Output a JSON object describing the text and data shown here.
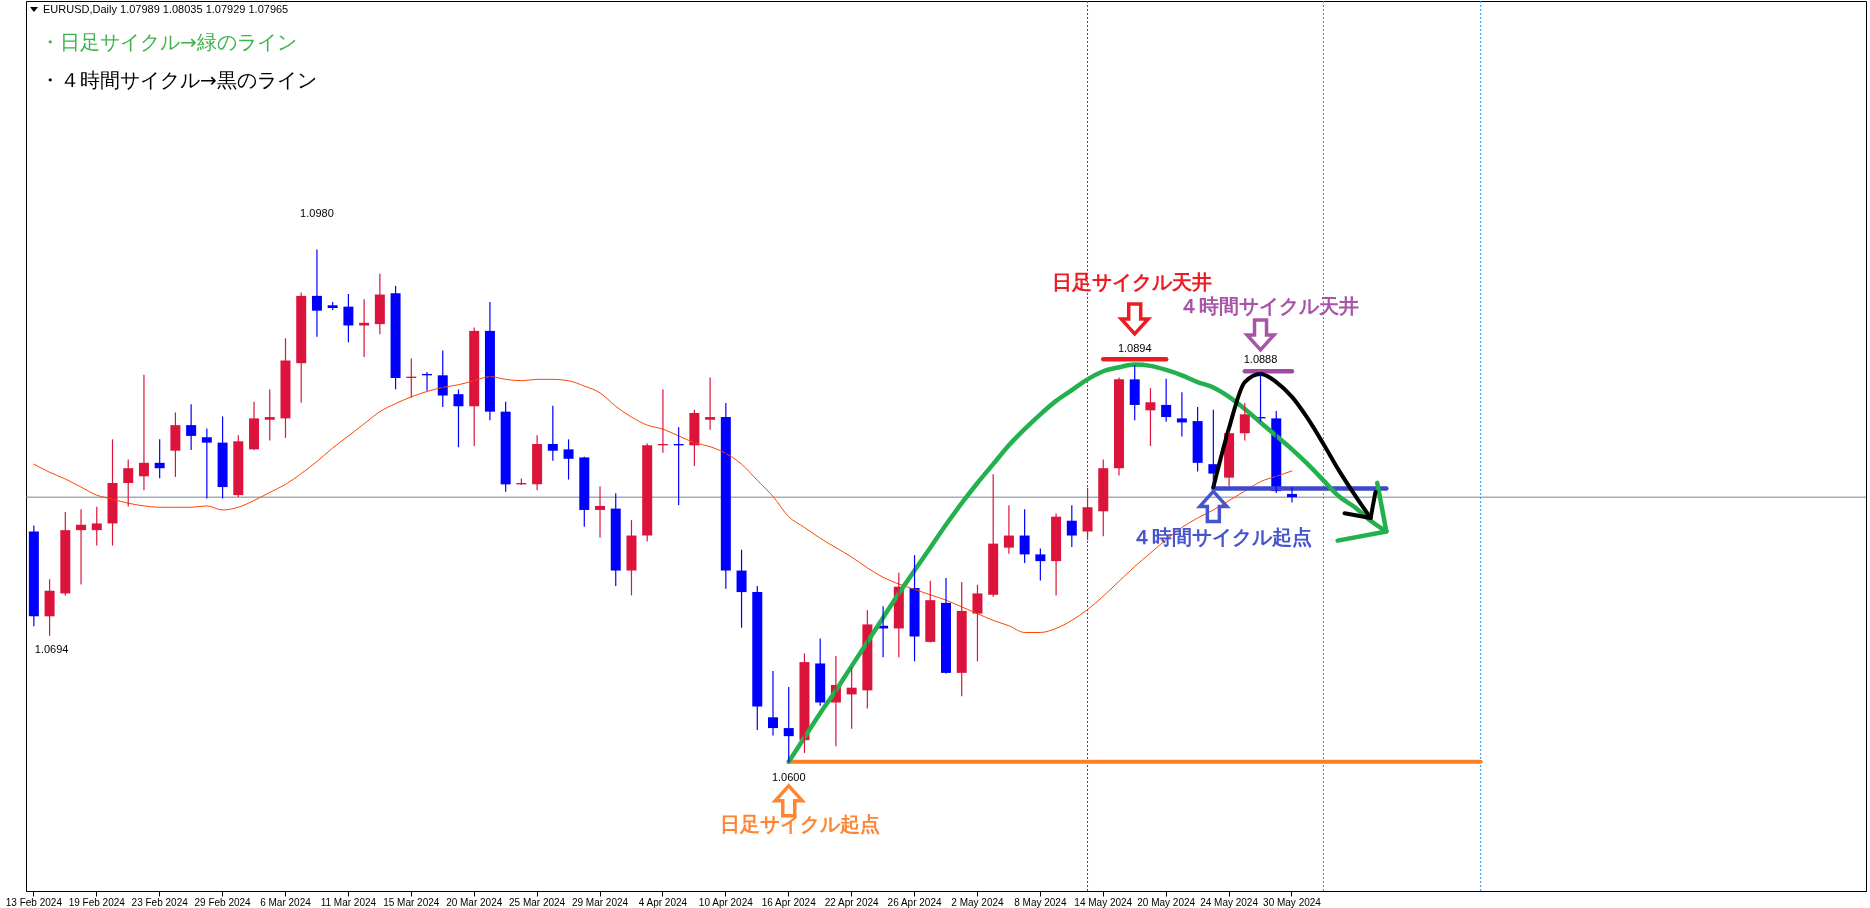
{
  "chart_data": {
    "type": "candlestick",
    "title": "EURUSD,Daily 1.07989 1.08035 1.07929 1.07965",
    "ylim": [
      1.0504,
      1.1165
    ],
    "tick_labels": "x",
    "categories": [
      "13 Feb 2024",
      null,
      null,
      null,
      "19 Feb 2024",
      null,
      null,
      null,
      "23 Feb 2024",
      null,
      null,
      null,
      "29 Feb 2024",
      null,
      null,
      null,
      "6 Mar 2024",
      null,
      null,
      null,
      "11 Mar 2024",
      null,
      null,
      null,
      "15 Mar 2024",
      null,
      null,
      null,
      "20 Mar 2024",
      null,
      null,
      null,
      "25 Mar 2024",
      null,
      null,
      null,
      "29 Mar 2024",
      null,
      null,
      null,
      "4 Apr 2024",
      null,
      null,
      null,
      "10 Apr 2024",
      null,
      null,
      null,
      "16 Apr 2024",
      null,
      null,
      null,
      "22 Apr 2024",
      null,
      null,
      null,
      "26 Apr 2024",
      null,
      null,
      null,
      "2 May 2024",
      null,
      null,
      null,
      "8 May 2024",
      null,
      null,
      null,
      "14 May 2024",
      null,
      null,
      null,
      "20 May 2024",
      null,
      null,
      null,
      "24 May 2024",
      null,
      null,
      null,
      "30 May 2024",
      null,
      null,
      null,
      null,
      null,
      null,
      null,
      null,
      null,
      null,
      null,
      null,
      null,
      null,
      null,
      null,
      null,
      null,
      null,
      null,
      null,
      null,
      null,
      null,
      null,
      null,
      null,
      null,
      null,
      null,
      null,
      null,
      null,
      null,
      null,
      null
    ],
    "series": [
      {
        "ohlc": [
          [
            1.0771,
            1.0775,
            1.0701,
            1.0708
          ],
          [
            1.0708,
            1.0735,
            1.0694,
            1.0727
          ],
          [
            1.0725,
            1.0785,
            1.0724,
            1.0772
          ],
          [
            1.0772,
            1.0787,
            1.0732,
            1.0776
          ],
          [
            1.0772,
            1.0789,
            1.0761,
            1.0777
          ],
          [
            1.0777,
            1.0839,
            1.0761,
            1.0807
          ],
          [
            1.0807,
            1.0824,
            1.079,
            1.0818
          ],
          [
            1.0812,
            1.0887,
            1.0802,
            1.0822
          ],
          [
            1.0822,
            1.0839,
            1.0811,
            1.0818
          ],
          [
            1.0831,
            1.0859,
            1.0812,
            1.085
          ],
          [
            1.085,
            1.0865,
            1.0832,
            1.0842
          ],
          [
            1.0841,
            1.0847,
            1.0796,
            1.0837
          ],
          [
            1.0837,
            1.0856,
            1.0796,
            1.0804
          ],
          [
            1.0798,
            1.0842,
            1.0797,
            1.0838
          ],
          [
            1.0832,
            1.0867,
            1.0832,
            1.0855
          ],
          [
            1.0854,
            1.0876,
            1.0839,
            1.0856
          ],
          [
            1.0855,
            1.0914,
            1.0841,
            1.0898
          ],
          [
            1.0896,
            1.0948,
            1.0867,
            1.0946
          ],
          [
            1.0946,
            1.098,
            1.0916,
            1.0935
          ],
          [
            1.0939,
            1.0941,
            1.0936,
            1.0937
          ],
          [
            1.0938,
            1.0947,
            1.0912,
            1.0924
          ],
          [
            1.0924,
            1.0943,
            1.0901,
            1.0926
          ],
          [
            1.0925,
            1.0962,
            1.0918,
            1.0947
          ],
          [
            1.0948,
            1.0953,
            1.0877,
            1.0885
          ],
          [
            1.0885,
            1.0899,
            1.0871,
            1.0886
          ],
          [
            1.0888,
            1.0889,
            1.0876,
            1.0887
          ],
          [
            1.0887,
            1.0905,
            1.0864,
            1.0872
          ],
          [
            1.0873,
            1.0876,
            1.0834,
            1.0864
          ],
          [
            1.0864,
            1.0922,
            1.0835,
            1.092
          ],
          [
            1.092,
            1.0941,
            1.0854,
            1.086
          ],
          [
            1.086,
            1.0867,
            1.0801,
            1.0806
          ],
          [
            1.0806,
            1.081,
            1.0806,
            1.0807
          ],
          [
            1.0806,
            1.0842,
            1.0802,
            1.0836
          ],
          [
            1.0836,
            1.0864,
            1.0824,
            1.0831
          ],
          [
            1.0832,
            1.0839,
            1.081,
            1.0825
          ],
          [
            1.0826,
            1.0826,
            1.0775,
            1.0787
          ],
          [
            1.0787,
            1.0804,
            1.0767,
            1.079
          ],
          [
            1.0788,
            1.0799,
            1.0731,
            1.0742
          ],
          [
            1.0742,
            1.0779,
            1.0724,
            1.0768
          ],
          [
            1.0768,
            1.0836,
            1.0764,
            1.0835
          ],
          [
            1.0835,
            1.0876,
            1.083,
            1.0836
          ],
          [
            1.0836,
            1.0848,
            1.0791,
            1.0835
          ],
          [
            1.0835,
            1.0861,
            1.082,
            1.0859
          ],
          [
            1.0854,
            1.0885,
            1.0847,
            1.0856
          ],
          [
            1.0856,
            1.0866,
            1.0729,
            1.0742
          ],
          [
            1.0742,
            1.0757,
            1.07,
            1.0726
          ],
          [
            1.0726,
            1.073,
            1.0624,
            1.0641
          ],
          [
            1.0633,
            1.0667,
            1.062,
            1.0625
          ],
          [
            1.0625,
            1.0655,
            1.06,
            1.0619
          ],
          [
            1.0616,
            1.068,
            1.0607,
            1.0674
          ],
          [
            1.0673,
            1.0691,
            1.0642,
            1.0644
          ],
          [
            1.0644,
            1.0678,
            1.0612,
            1.0657
          ],
          [
            1.065,
            1.067,
            1.0625,
            1.0655
          ],
          [
            1.0653,
            1.0712,
            1.064,
            1.0702
          ],
          [
            1.0701,
            1.0715,
            1.0678,
            1.0699
          ],
          [
            1.0699,
            1.074,
            1.0678,
            1.073
          ],
          [
            1.0729,
            1.0753,
            1.0675,
            1.0693
          ],
          [
            1.0689,
            1.0734,
            1.0689,
            1.072
          ],
          [
            1.0718,
            1.0736,
            1.0666,
            1.0666
          ],
          [
            1.0666,
            1.0733,
            1.0649,
            1.0712
          ],
          [
            1.071,
            1.0731,
            1.0675,
            1.0725
          ],
          [
            1.0724,
            1.0813,
            1.0723,
            1.0762
          ],
          [
            1.0759,
            1.079,
            1.0755,
            1.0768
          ],
          [
            1.0768,
            1.0787,
            1.0748,
            1.0754
          ],
          [
            1.0754,
            1.0758,
            1.0735,
            1.0749
          ],
          [
            1.0749,
            1.0784,
            1.0724,
            1.0782
          ],
          [
            1.0779,
            1.079,
            1.076,
            1.0768
          ],
          [
            1.0771,
            1.0803,
            1.0765,
            1.0789
          ],
          [
            1.0786,
            1.0824,
            1.0768,
            1.0818
          ],
          [
            1.0818,
            1.0885,
            1.0813,
            1.0884
          ],
          [
            1.0884,
            1.0894,
            1.0854,
            1.0865
          ],
          [
            1.0861,
            1.0877,
            1.0835,
            1.0867
          ],
          [
            1.0865,
            1.0884,
            1.0853,
            1.0856
          ],
          [
            1.0855,
            1.0874,
            1.0842,
            1.0852
          ],
          [
            1.0853,
            1.0863,
            1.0816,
            1.0822
          ],
          [
            1.0821,
            1.0861,
            1.0804,
            1.0814
          ],
          [
            1.0811,
            1.0845,
            1.0805,
            1.0844
          ],
          [
            1.0844,
            1.0866,
            1.0839,
            1.0858
          ],
          [
            1.0856,
            1.0888,
            1.0853,
            1.0855
          ],
          [
            1.0855,
            1.086,
            1.08,
            1.0801
          ],
          [
            1.07989,
            1.08035,
            1.07929,
            1.07965
          ],
          null,
          null,
          null,
          null,
          null,
          null,
          null,
          null,
          null,
          null,
          null,
          null,
          null,
          null,
          null,
          null,
          null,
          null,
          null,
          null,
          null,
          null,
          null,
          null,
          null,
          null,
          null,
          null,
          null,
          null,
          null,
          null,
          null,
          null,
          null,
          null
        ],
        "colors": [
          "#0000ff",
          "#dc143c",
          "#dc143c",
          "#dc143c",
          "#dc143c",
          "#dc143c",
          "#dc143c",
          "#dc143c",
          "#0000ff",
          "#dc143c",
          "#0000ff",
          "#0000ff",
          "#0000ff",
          "#dc143c",
          "#dc143c",
          "#dc143c",
          "#dc143c",
          "#dc143c",
          "#0000ff",
          "#0000ff",
          "#0000ff",
          "#dc143c",
          "#dc143c",
          "#0000ff",
          "#dc143c",
          "#0000ff",
          "#0000ff",
          "#0000ff",
          "#dc143c",
          "#0000ff",
          "#0000ff",
          "#dc143c",
          "#dc143c",
          "#0000ff",
          "#0000ff",
          "#0000ff",
          "#dc143c",
          "#0000ff",
          "#dc143c",
          "#dc143c",
          "#dc143c",
          "#0000ff",
          "#dc143c",
          "#dc143c",
          "#0000ff",
          "#0000ff",
          "#0000ff",
          "#0000ff",
          "#0000ff",
          "#dc143c",
          "#0000ff",
          "#dc143c",
          "#dc143c",
          "#dc143c",
          "#0000ff",
          "#dc143c",
          "#0000ff",
          "#dc143c",
          "#0000ff",
          "#dc143c",
          "#dc143c",
          "#dc143c",
          "#dc143c",
          "#0000ff",
          "#0000ff",
          "#dc143c",
          "#0000ff",
          "#dc143c",
          "#dc143c",
          "#dc143c",
          "#0000ff",
          "#dc143c",
          "#0000ff",
          "#0000ff",
          "#0000ff",
          "#0000ff",
          "#dc143c",
          "#dc143c",
          "#0000ff",
          "#0000ff",
          "#0000ff",
          null,
          null,
          null,
          null,
          null,
          null,
          null,
          null,
          null,
          null,
          null,
          null,
          null,
          null,
          null,
          null,
          null,
          null,
          null,
          null,
          null,
          null,
          null,
          null,
          null,
          null,
          null,
          null,
          null,
          null,
          null,
          null,
          null,
          null,
          null,
          null
        ]
      },
      {
        "type": "line",
        "color": "#ff4500",
        "values": [
          1.0821,
          1.0815,
          1.081,
          1.0804,
          1.0798,
          1.0795,
          1.0792,
          1.079,
          1.0789,
          1.0789,
          1.0789,
          1.079,
          1.0787,
          1.0789,
          1.0794,
          1.08,
          1.0806,
          1.0814,
          1.0823,
          1.0833,
          1.0842,
          1.0851,
          1.086,
          1.0866,
          1.0871,
          1.0875,
          1.0878,
          1.088,
          1.0883,
          1.0886,
          1.0884,
          1.0883,
          1.0884,
          1.0884,
          1.0883,
          1.0879,
          1.0874,
          1.0864,
          1.0856,
          1.085,
          1.0847,
          1.0842,
          1.0837,
          1.0834,
          1.0829,
          1.0821,
          1.0809,
          1.0797,
          1.0782,
          1.0774,
          1.0766,
          1.0759,
          1.0752,
          1.0744,
          1.0737,
          1.0732,
          1.0728,
          1.0724,
          1.072,
          1.0715,
          1.071,
          1.0705,
          1.0701,
          1.0696,
          1.0696,
          1.0699,
          1.0705,
          1.0713,
          1.0723,
          1.0734,
          1.0745,
          1.0755,
          1.0765,
          1.0774,
          1.0781,
          1.0787,
          1.0794,
          1.0801,
          1.0808,
          1.0812,
          1.0816,
          null,
          null,
          null,
          null,
          null,
          null,
          null,
          null,
          null,
          null,
          null,
          null,
          null,
          null,
          null,
          null,
          null,
          null,
          null,
          null,
          null,
          null,
          null,
          null,
          null,
          null,
          null,
          null,
          null,
          null,
          null,
          null,
          null,
          null,
          null,
          null
        ]
      },
      {
        "type": "line",
        "color": "#ff7f27",
        "values": [
          null,
          null,
          null,
          null,
          null,
          null,
          null,
          null,
          null,
          null,
          null,
          null,
          null,
          null,
          null,
          null,
          null,
          null,
          null,
          null,
          null,
          null,
          null,
          null,
          null,
          null,
          null,
          null,
          null,
          null,
          null,
          null,
          null,
          null,
          null,
          null,
          null,
          null,
          null,
          null,
          null,
          null,
          null,
          null,
          null,
          null,
          null,
          null,
          1.06,
          1.06,
          1.06,
          1.06,
          1.06,
          1.06,
          1.06,
          1.06,
          1.06,
          1.06,
          1.06,
          1.06,
          1.06,
          1.06,
          1.06,
          1.06,
          1.06,
          1.06,
          1.06,
          1.06,
          1.06,
          1.06,
          1.06,
          1.06,
          1.06,
          1.06,
          1.06,
          1.06,
          1.06,
          1.06,
          1.06,
          1.06,
          1.06,
          1.06,
          1.06,
          1.06,
          1.06,
          1.06,
          1.06,
          1.06,
          1.06,
          1.06,
          1.06,
          1.06,
          1.06,
          null,
          null,
          null,
          null,
          null,
          null,
          null,
          null,
          null,
          null,
          null,
          null,
          null,
          null,
          null,
          null,
          null,
          null,
          null,
          null,
          null,
          null,
          null,
          null
        ]
      },
      {
        "type": "line",
        "color": "#ed1c24",
        "values": [
          null,
          null,
          null,
          null,
          null,
          null,
          null,
          null,
          null,
          null,
          null,
          null,
          null,
          null,
          null,
          null,
          null,
          null,
          null,
          null,
          null,
          null,
          null,
          null,
          null,
          null,
          null,
          null,
          null,
          null,
          null,
          null,
          null,
          null,
          null,
          null,
          null,
          null,
          null,
          null,
          null,
          null,
          null,
          null,
          null,
          null,
          null,
          null,
          null,
          null,
          null,
          null,
          null,
          null,
          null,
          null,
          null,
          null,
          null,
          null,
          null,
          null,
          null,
          null,
          null,
          null,
          null,
          null,
          1.0899,
          1.0899,
          1.0899,
          1.0899,
          1.0899,
          null,
          null,
          null,
          null,
          null,
          null,
          null,
          null,
          null,
          null,
          null,
          null,
          null,
          null,
          null,
          null,
          null,
          null,
          null,
          null,
          null,
          null,
          null,
          null,
          null,
          null,
          null,
          null,
          null,
          null,
          null,
          null,
          null,
          null,
          null,
          null,
          null,
          null,
          null,
          null,
          null,
          null,
          null,
          null
        ]
      },
      {
        "type": "line",
        "color": "#a349a4",
        "values": [
          null,
          null,
          null,
          null,
          null,
          null,
          null,
          null,
          null,
          null,
          null,
          null,
          null,
          null,
          null,
          null,
          null,
          null,
          null,
          null,
          null,
          null,
          null,
          null,
          null,
          null,
          null,
          null,
          null,
          null,
          null,
          null,
          null,
          null,
          null,
          null,
          null,
          null,
          null,
          null,
          null,
          null,
          null,
          null,
          null,
          null,
          null,
          null,
          null,
          null,
          null,
          null,
          null,
          null,
          null,
          null,
          null,
          null,
          null,
          null,
          null,
          null,
          null,
          null,
          null,
          null,
          null,
          null,
          null,
          null,
          null,
          null,
          null,
          null,
          null,
          null,
          null,
          1.089,
          1.089,
          1.089,
          1.089,
          null,
          null,
          null,
          null,
          null,
          null,
          null,
          null,
          null,
          null,
          null,
          null,
          null,
          null,
          null,
          null,
          null,
          null,
          null,
          null,
          null,
          null,
          null,
          null,
          null,
          null,
          null,
          null,
          null,
          null,
          null,
          null,
          null,
          null,
          null,
          null
        ]
      },
      {
        "type": "line",
        "color": "#3f48cc",
        "values": [
          null,
          null,
          null,
          null,
          null,
          null,
          null,
          null,
          null,
          null,
          null,
          null,
          null,
          null,
          null,
          null,
          null,
          null,
          null,
          null,
          null,
          null,
          null,
          null,
          null,
          null,
          null,
          null,
          null,
          null,
          null,
          null,
          null,
          null,
          null,
          null,
          null,
          null,
          null,
          null,
          null,
          null,
          null,
          null,
          null,
          null,
          null,
          null,
          null,
          null,
          null,
          null,
          null,
          null,
          null,
          null,
          null,
          null,
          null,
          null,
          null,
          null,
          null,
          null,
          null,
          null,
          null,
          null,
          null,
          null,
          null,
          null,
          null,
          null,
          null,
          1.0803,
          1.0803,
          1.0803,
          1.0803,
          1.0803,
          1.0803,
          1.0803,
          1.0803,
          1.0803,
          1.0803,
          1.0803,
          1.0803,
          null,
          null,
          null,
          null,
          null,
          null,
          null,
          null,
          null,
          null,
          null,
          null,
          null,
          null,
          null,
          null,
          null,
          null,
          null,
          null,
          null,
          null,
          null,
          null,
          null,
          null,
          null,
          null,
          null,
          null
        ]
      },
      {
        "type": "line",
        "color": "#22b14c",
        "values": [
          null,
          null,
          null,
          null,
          null,
          null,
          null,
          null,
          null,
          null,
          null,
          null,
          null,
          null,
          null,
          null,
          null,
          null,
          null,
          null,
          null,
          null,
          null,
          null,
          null,
          null,
          null,
          null,
          null,
          null,
          null,
          null,
          null,
          null,
          null,
          null,
          null,
          null,
          null,
          null,
          null,
          null,
          null,
          null,
          null,
          null,
          null,
          null,
          1.06,
          1.0618,
          1.0636,
          1.0653,
          1.0671,
          1.0689,
          1.0707,
          1.0725,
          1.0742,
          1.0759,
          1.0776,
          1.0792,
          1.0807,
          1.0821,
          1.0835,
          1.0847,
          1.0858,
          1.0868,
          1.0876,
          1.0884,
          1.089,
          1.0893,
          1.0895,
          1.0894,
          1.0891,
          1.0887,
          1.0882,
          1.0878,
          1.0871,
          1.0862,
          1.0852,
          1.0842,
          1.0832,
          1.0821,
          1.0809,
          1.0797,
          1.0789,
          1.0779,
          1.0771,
          null,
          null,
          null,
          null,
          null,
          null,
          null,
          null,
          null,
          null,
          null,
          null,
          null,
          null,
          null,
          null,
          null,
          null,
          null,
          null,
          null,
          null,
          null,
          null,
          null,
          null,
          null,
          null,
          null,
          null
        ]
      },
      {
        "type": "line",
        "color": "#000000",
        "values": [
          null,
          null,
          null,
          null,
          null,
          null,
          null,
          null,
          null,
          null,
          null,
          null,
          null,
          null,
          null,
          null,
          null,
          null,
          null,
          null,
          null,
          null,
          null,
          null,
          null,
          null,
          null,
          null,
          null,
          null,
          null,
          null,
          null,
          null,
          null,
          null,
          null,
          null,
          null,
          null,
          null,
          null,
          null,
          null,
          null,
          null,
          null,
          null,
          null,
          null,
          null,
          null,
          null,
          null,
          null,
          null,
          null,
          null,
          null,
          null,
          null,
          null,
          null,
          null,
          null,
          null,
          null,
          null,
          null,
          null,
          null,
          null,
          null,
          null,
          null,
          1.0804,
          1.0848,
          1.0882,
          1.0888,
          1.0882,
          1.0871,
          1.0855,
          1.0836,
          1.0816,
          1.0798,
          1.0781,
          null,
          null,
          null,
          null,
          null,
          null,
          null,
          null,
          null,
          null,
          null,
          null,
          null,
          null,
          null,
          null,
          null,
          null,
          null,
          null,
          null,
          null,
          null,
          null,
          null,
          null,
          null,
          null,
          null,
          null,
          null
        ]
      }
    ],
    "ref_lines": [
      {
        "axis": "y",
        "value": 1.07965,
        "color": "#778899"
      }
    ],
    "annotations": [
      "・日足サイクル→緑のライン",
      "・４時間サイクル→黒のライン",
      {
        "text": "1.0980",
        "y": 1.098
      },
      {
        "text": "1.0694",
        "y": 1.0694
      },
      "日足サイクル天井",
      {
        "text": "1.0894",
        "y": 1.0894
      },
      "４時間サイクル天井",
      {
        "text": "1.0888",
        "y": 1.0888
      },
      "４時間サイクル起点",
      {
        "text": "1.0600",
        "x": "16 Apr 2024",
        "y": 1.06
      },
      "日足サイクル起点"
    ]
  }
}
